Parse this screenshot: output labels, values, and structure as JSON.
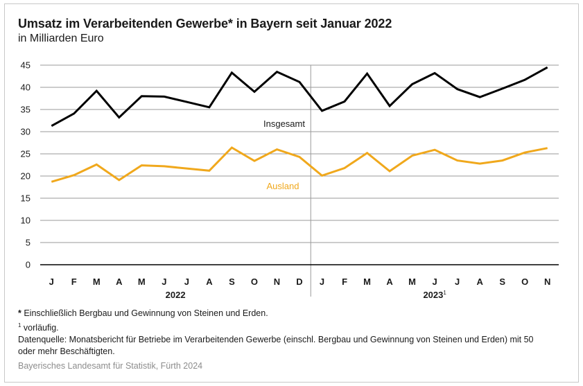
{
  "title": "Umsatz im Verarbeitenden Gewerbe* in Bayern seit Januar 2022",
  "subtitle": "in Milliarden Euro",
  "notes": {
    "star_marker": "*",
    "star_text": " Einschließlich Bergbau und Gewinnung von Steinen und Erden.",
    "one_marker": "1",
    "one_text": " vorläufig.",
    "datasource": "Datenquelle: Monatsbericht für Betriebe im Verarbeitenden Gewerbe (einschl. Bergbau und Gewinnung von Steinen und Erden) mit 50 oder mehr Beschäftigten."
  },
  "source": "Bayerisches Landesamt für Statistik, Fürth 2024",
  "colors": {
    "insgesamt": "#000000",
    "ausland": "#f0a81c",
    "grid": "#9a9a9a",
    "axis": "#000000"
  },
  "chart_data": {
    "type": "line",
    "categories": [
      "J",
      "F",
      "M",
      "A",
      "M",
      "J",
      "J",
      "A",
      "S",
      "O",
      "N",
      "D",
      "J",
      "F",
      "M",
      "A",
      "M",
      "J",
      "J",
      "A",
      "S",
      "O",
      "N"
    ],
    "year_labels": [
      "2022",
      "2023"
    ],
    "year_superscript": [
      "",
      "1"
    ],
    "yticks": [
      0,
      5,
      10,
      15,
      20,
      25,
      30,
      35,
      40,
      45
    ],
    "ylim": [
      0,
      45
    ],
    "grid": true,
    "series": [
      {
        "name": "Insgesamt",
        "values": [
          31.3,
          34.1,
          39.2,
          33.2,
          38.0,
          37.9,
          36.7,
          35.5,
          43.3,
          39.0,
          43.5,
          41.2,
          34.7,
          36.8,
          43.1,
          35.8,
          40.7,
          43.2,
          39.6,
          37.8,
          39.7,
          41.7,
          44.5
        ]
      },
      {
        "name": "Ausland",
        "values": [
          18.7,
          20.2,
          22.6,
          19.1,
          22.4,
          22.2,
          21.7,
          21.2,
          26.4,
          23.4,
          26.0,
          24.3,
          20.1,
          21.8,
          25.2,
          21.1,
          24.6,
          25.9,
          23.5,
          22.8,
          23.5,
          25.3,
          26.3
        ]
      }
    ]
  }
}
